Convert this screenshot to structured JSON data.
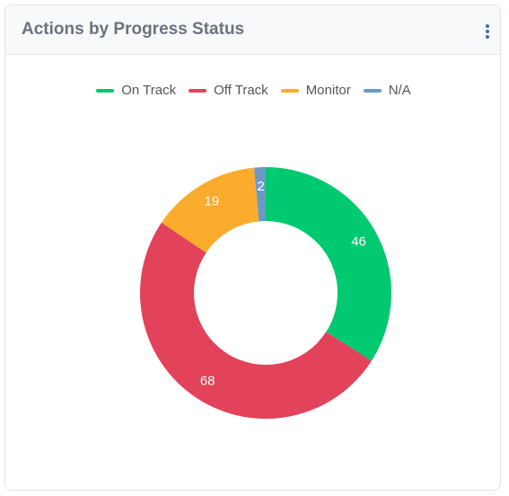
{
  "chart_data": {
    "type": "donut",
    "title": "Actions by Progress Status",
    "categories": [
      "On Track",
      "Off Track",
      "Monitor",
      "N/A"
    ],
    "values": [
      46,
      68,
      19,
      2
    ],
    "colors": [
      "#00c96f",
      "#e2425a",
      "#fcac2d",
      "#6a9ac4"
    ],
    "legend": "top"
  }
}
